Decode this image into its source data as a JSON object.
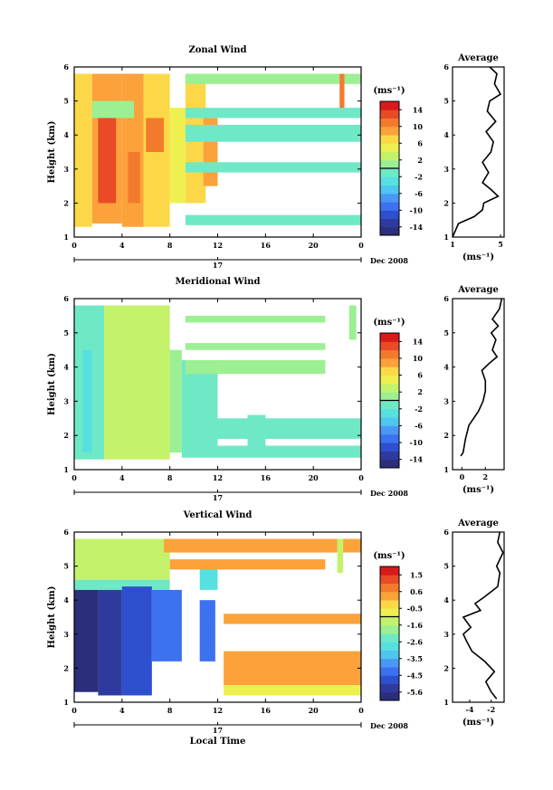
{
  "colorscale": [
    "#2b2e7a",
    "#2f3a9e",
    "#2e50cf",
    "#3c72f0",
    "#4a98f5",
    "#4ec6f0",
    "#57e0e0",
    "#6fe8c6",
    "#9cef92",
    "#c4f26a",
    "#eef050",
    "#fcd848",
    "#fba23a",
    "#f37a2c",
    "#ea4a26",
    "#d91a1a"
  ],
  "panels": [
    {
      "name": "zonal",
      "title": "Zonal Wind",
      "ylabel": "Height (km)",
      "yticks": [
        "1",
        "2",
        "3",
        "4",
        "5",
        "6"
      ],
      "ylim": [
        1,
        6
      ],
      "xticks": [
        "0",
        "4",
        "8",
        "12",
        "16",
        "20",
        "0"
      ],
      "xlim": [
        0,
        24
      ],
      "date_center": "17",
      "date_right": "Dec 2008",
      "colorbar": {
        "unit": "(ms⁻¹)",
        "ticks": [
          "14",
          "10",
          "6",
          "2",
          "-2",
          "-6",
          "-10",
          "-14"
        ],
        "min": -16,
        "max": 16,
        "zero": 0
      },
      "blocks": [
        {
          "x0": 0,
          "x1": 1.5,
          "y0": 1.3,
          "y1": 5.8,
          "v": 6
        },
        {
          "x0": 1.5,
          "x1": 4,
          "y0": 1.4,
          "y1": 5.8,
          "v": 9
        },
        {
          "x0": 2,
          "x1": 3.5,
          "y0": 2,
          "y1": 4.5,
          "v": 12
        },
        {
          "x0": 4,
          "x1": 5.8,
          "y0": 1.3,
          "y1": 5.8,
          "v": 8
        },
        {
          "x0": 4.5,
          "x1": 5.5,
          "y0": 2,
          "y1": 3.5,
          "v": 11
        },
        {
          "x0": 5.8,
          "x1": 8,
          "y0": 1.3,
          "y1": 5.8,
          "v": 6
        },
        {
          "x0": 6,
          "x1": 7.5,
          "y0": 3.5,
          "y1": 4.5,
          "v": 10
        },
        {
          "x0": 8,
          "x1": 9.3,
          "y0": 2,
          "y1": 4.8,
          "v": 5
        },
        {
          "x0": 9.3,
          "x1": 11,
          "y0": 2,
          "y1": 5.8,
          "v": 7
        },
        {
          "x0": 10.8,
          "x1": 12,
          "y0": 2.5,
          "y1": 4.5,
          "v": 9
        },
        {
          "x0": 1.5,
          "x1": 5,
          "y0": 4.5,
          "y1": 5.0,
          "v": 1
        },
        {
          "x0": 9.3,
          "x1": 24,
          "y0": 1.35,
          "y1": 1.65,
          "v": -1
        },
        {
          "x0": 9.3,
          "x1": 24,
          "y0": 2.9,
          "y1": 3.2,
          "v": -1
        },
        {
          "x0": 9.3,
          "x1": 24,
          "y0": 3.8,
          "y1": 4.3,
          "v": -1
        },
        {
          "x0": 9.3,
          "x1": 24,
          "y0": 4.5,
          "y1": 4.8,
          "v": -1
        },
        {
          "x0": 9.3,
          "x1": 24,
          "y0": 5.5,
          "y1": 5.8,
          "v": 0
        },
        {
          "x0": 22.2,
          "x1": 22.6,
          "y0": 4.8,
          "y1": 5.8,
          "v": 10
        }
      ],
      "avg": {
        "xlabel": "(ms⁻¹)",
        "title": "Average",
        "xticks": [
          "1",
          "5"
        ],
        "xtick_values": [
          1,
          5
        ],
        "xlim": [
          1,
          5.3
        ],
        "profile": [
          [
            1.0,
            1.0
          ],
          [
            1.5,
            1.4
          ],
          [
            2.8,
            1.6
          ],
          [
            3.5,
            1.8
          ],
          [
            3.6,
            2.0
          ],
          [
            4.8,
            2.2
          ],
          [
            4.2,
            2.4
          ],
          [
            3.5,
            2.6
          ],
          [
            4.0,
            2.9
          ],
          [
            3.5,
            3.2
          ],
          [
            4.2,
            3.5
          ],
          [
            4.4,
            3.8
          ],
          [
            3.8,
            4.1
          ],
          [
            4.6,
            4.4
          ],
          [
            3.9,
            4.7
          ],
          [
            4.1,
            5.0
          ],
          [
            5.0,
            5.2
          ],
          [
            4.5,
            5.5
          ],
          [
            4.7,
            5.8
          ],
          [
            4.1,
            6.0
          ]
        ]
      }
    },
    {
      "name": "meridional",
      "title": "Meridional Wind",
      "ylabel": "Height (km)",
      "yticks": [
        "1",
        "2",
        "3",
        "4",
        "5",
        "6"
      ],
      "ylim": [
        1,
        6
      ],
      "xticks": [
        "0",
        "4",
        "8",
        "12",
        "16",
        "20",
        "0"
      ],
      "xlim": [
        0,
        24
      ],
      "date_center": "17",
      "date_right": "Dec 2008",
      "colorbar": {
        "unit": "(ms⁻¹)",
        "ticks": [
          "14",
          "10",
          "6",
          "2",
          "-2",
          "-6",
          "-10",
          "-14"
        ],
        "min": -16,
        "max": 16,
        "zero": 0
      },
      "blocks": [
        {
          "x0": 0,
          "x1": 2.5,
          "y0": 1.3,
          "y1": 5.8,
          "v": -1
        },
        {
          "x0": 0.7,
          "x1": 1.5,
          "y0": 1.5,
          "y1": 4.5,
          "v": -3
        },
        {
          "x0": 2.5,
          "x1": 5,
          "y0": 1.3,
          "y1": 5.8,
          "v": 2
        },
        {
          "x0": 5,
          "x1": 8,
          "y0": 1.3,
          "y1": 5.8,
          "v": 3
        },
        {
          "x0": 8,
          "x1": 9,
          "y0": 1.5,
          "y1": 4.5,
          "v": 1
        },
        {
          "x0": 9,
          "x1": 12,
          "y0": 1.4,
          "y1": 4.2,
          "v": -1
        },
        {
          "x0": 9,
          "x1": 24,
          "y0": 1.35,
          "y1": 1.7,
          "v": -1
        },
        {
          "x0": 12,
          "x1": 24,
          "y0": 1.9,
          "y1": 2.5,
          "v": -1
        },
        {
          "x0": 14.5,
          "x1": 16,
          "y0": 1.4,
          "y1": 2.6,
          "v": -2
        },
        {
          "x0": 9.3,
          "x1": 21,
          "y0": 3.8,
          "y1": 4.2,
          "v": 0
        },
        {
          "x0": 9.3,
          "x1": 21,
          "y0": 4.5,
          "y1": 4.7,
          "v": 0
        },
        {
          "x0": 9.3,
          "x1": 21,
          "y0": 5.3,
          "y1": 5.5,
          "v": 0
        },
        {
          "x0": 23,
          "x1": 23.6,
          "y0": 4.8,
          "y1": 5.8,
          "v": 1
        }
      ],
      "avg": {
        "xlabel": "(ms⁻¹)",
        "title": "Average",
        "xticks": [
          "0",
          "2"
        ],
        "xtick_values": [
          0,
          2
        ],
        "xlim": [
          -0.8,
          3.6
        ],
        "profile": [
          [
            -0.1,
            1.4
          ],
          [
            0.1,
            1.5
          ],
          [
            0.3,
            1.9
          ],
          [
            0.6,
            2.3
          ],
          [
            1.4,
            2.7
          ],
          [
            1.8,
            3.0
          ],
          [
            2.0,
            3.3
          ],
          [
            2.0,
            3.6
          ],
          [
            1.7,
            3.9
          ],
          [
            2.3,
            4.1
          ],
          [
            3.0,
            4.3
          ],
          [
            2.6,
            4.5
          ],
          [
            2.9,
            4.8
          ],
          [
            2.5,
            5.0
          ],
          [
            3.1,
            5.2
          ],
          [
            2.6,
            5.4
          ],
          [
            3.2,
            5.7
          ],
          [
            3.4,
            6.0
          ]
        ]
      }
    },
    {
      "name": "vertical",
      "title": "Vertical Wind",
      "ylabel": "Height (km)",
      "yticks": [
        "1",
        "2",
        "3",
        "4",
        "5",
        "6"
      ],
      "ylim": [
        1,
        6
      ],
      "xticks": [
        "0",
        "4",
        "8",
        "12",
        "16",
        "20",
        "0"
      ],
      "xlim": [
        0,
        24
      ],
      "date_center": "17",
      "date_right": "Dec 2008",
      "xlabel": "Local Time",
      "colorbar": {
        "unit": "(ms⁻¹)",
        "ticks": [
          "1.5",
          "0.6",
          "-0.5",
          "-1.6",
          "-2.6",
          "-3.5",
          "-4.5",
          "-5.6"
        ],
        "min": -6.0,
        "max": 2.0,
        "zero": -1.0
      },
      "blocks": [
        {
          "x0": 0,
          "x1": 8,
          "y0": 4.6,
          "y1": 5.8,
          "v": -1.3
        },
        {
          "x0": 0,
          "x1": 8,
          "y0": 4.3,
          "y1": 4.6,
          "v": -2.3
        },
        {
          "x0": 0,
          "x1": 2,
          "y0": 1.3,
          "y1": 4.3,
          "v": -5.8
        },
        {
          "x0": 2,
          "x1": 4,
          "y0": 1.2,
          "y1": 4.3,
          "v": -5.3
        },
        {
          "x0": 4,
          "x1": 6.5,
          "y0": 1.2,
          "y1": 4.4,
          "v": -4.9
        },
        {
          "x0": 6.5,
          "x1": 9,
          "y0": 2.2,
          "y1": 4.3,
          "v": -4.2
        },
        {
          "x0": 10.5,
          "x1": 11.8,
          "y0": 2.2,
          "y1": 4.0,
          "v": -4.5
        },
        {
          "x0": 10.5,
          "x1": 12,
          "y0": 4.3,
          "y1": 5.0,
          "v": -2.6
        },
        {
          "x0": 7.5,
          "x1": 24,
          "y0": 5.4,
          "y1": 5.8,
          "v": 0.0
        },
        {
          "x0": 8,
          "x1": 21,
          "y0": 4.9,
          "y1": 5.2,
          "v": 0.2
        },
        {
          "x0": 12.5,
          "x1": 24,
          "y0": 3.3,
          "y1": 3.6,
          "v": 0.3
        },
        {
          "x0": 12.5,
          "x1": 24,
          "y0": 1.5,
          "y1": 2.5,
          "v": 0.2
        },
        {
          "x0": 12.5,
          "x1": 24,
          "y0": 1.2,
          "y1": 1.5,
          "v": -1.0
        },
        {
          "x0": 22,
          "x1": 22.5,
          "y0": 4.8,
          "y1": 5.8,
          "v": -1.5
        }
      ],
      "avg": {
        "xlabel": "(ms⁻¹)",
        "title": "Average",
        "xticks": [
          "-4",
          "-2"
        ],
        "xtick_values": [
          -4,
          -2
        ],
        "xlim": [
          -5.6,
          -0.8
        ],
        "profile": [
          [
            -1.5,
            1.1
          ],
          [
            -2.0,
            1.3
          ],
          [
            -2.5,
            1.6
          ],
          [
            -1.7,
            1.9
          ],
          [
            -2.6,
            2.2
          ],
          [
            -3.8,
            2.5
          ],
          [
            -4.3,
            2.8
          ],
          [
            -4.6,
            3.0
          ],
          [
            -3.9,
            3.2
          ],
          [
            -4.6,
            3.5
          ],
          [
            -3.0,
            3.7
          ],
          [
            -3.5,
            3.9
          ],
          [
            -2.6,
            4.1
          ],
          [
            -1.4,
            4.4
          ],
          [
            -1.2,
            4.8
          ],
          [
            -1.5,
            5.0
          ],
          [
            -0.9,
            5.4
          ],
          [
            -1.4,
            5.7
          ],
          [
            -1.2,
            6.0
          ]
        ]
      }
    }
  ]
}
